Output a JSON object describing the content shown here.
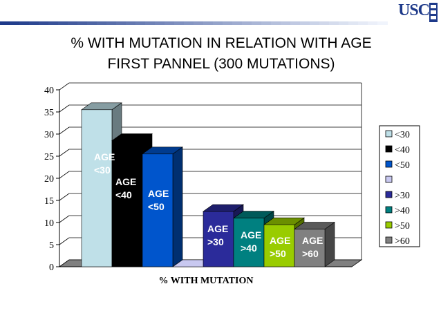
{
  "slide": {
    "logo_text": "USC",
    "title_line1": "% WITH MUTATION IN RELATION WITH AGE",
    "title_line2": "FIRST PANNEL (300 MUTATIONS)"
  },
  "chart_data": {
    "type": "bar",
    "xlabel": "% WITH MUTATION",
    "ylabel": "",
    "ylim": [
      0,
      40
    ],
    "yticks": [
      0,
      5,
      10,
      15,
      20,
      25,
      30,
      35,
      40
    ],
    "grid": true,
    "legend_position": "right",
    "series": [
      {
        "name": "<30",
        "values": [
          35.5
        ],
        "color": "#bfe0e8",
        "label_top": "AGE",
        "label_bottom": "<30"
      },
      {
        "name": "<40",
        "values": [
          28.5
        ],
        "color": "#000000",
        "label_top": "AGE",
        "label_bottom": "<40"
      },
      {
        "name": "<50",
        "values": [
          25.5
        ],
        "color": "#0055cc",
        "label_top": "AGE",
        "label_bottom": "<50"
      },
      {
        "name": "",
        "values": [
          0
        ],
        "color": "#c8c8f0",
        "label_top": "",
        "label_bottom": ""
      },
      {
        "name": ">30",
        "values": [
          12.5
        ],
        "color": "#2b2b9a",
        "label_top": "AGE",
        "label_bottom": ">30"
      },
      {
        "name": ">40",
        "values": [
          11
        ],
        "color": "#008080",
        "label_top": "AGE",
        "label_bottom": ">40"
      },
      {
        "name": ">50",
        "values": [
          9.5
        ],
        "color": "#99cc00",
        "label_top": "AGE",
        "label_bottom": ">50"
      },
      {
        "name": ">60",
        "values": [
          8.5
        ],
        "color": "#808080",
        "label_top": "AGE",
        "label_bottom": ">60"
      }
    ]
  }
}
